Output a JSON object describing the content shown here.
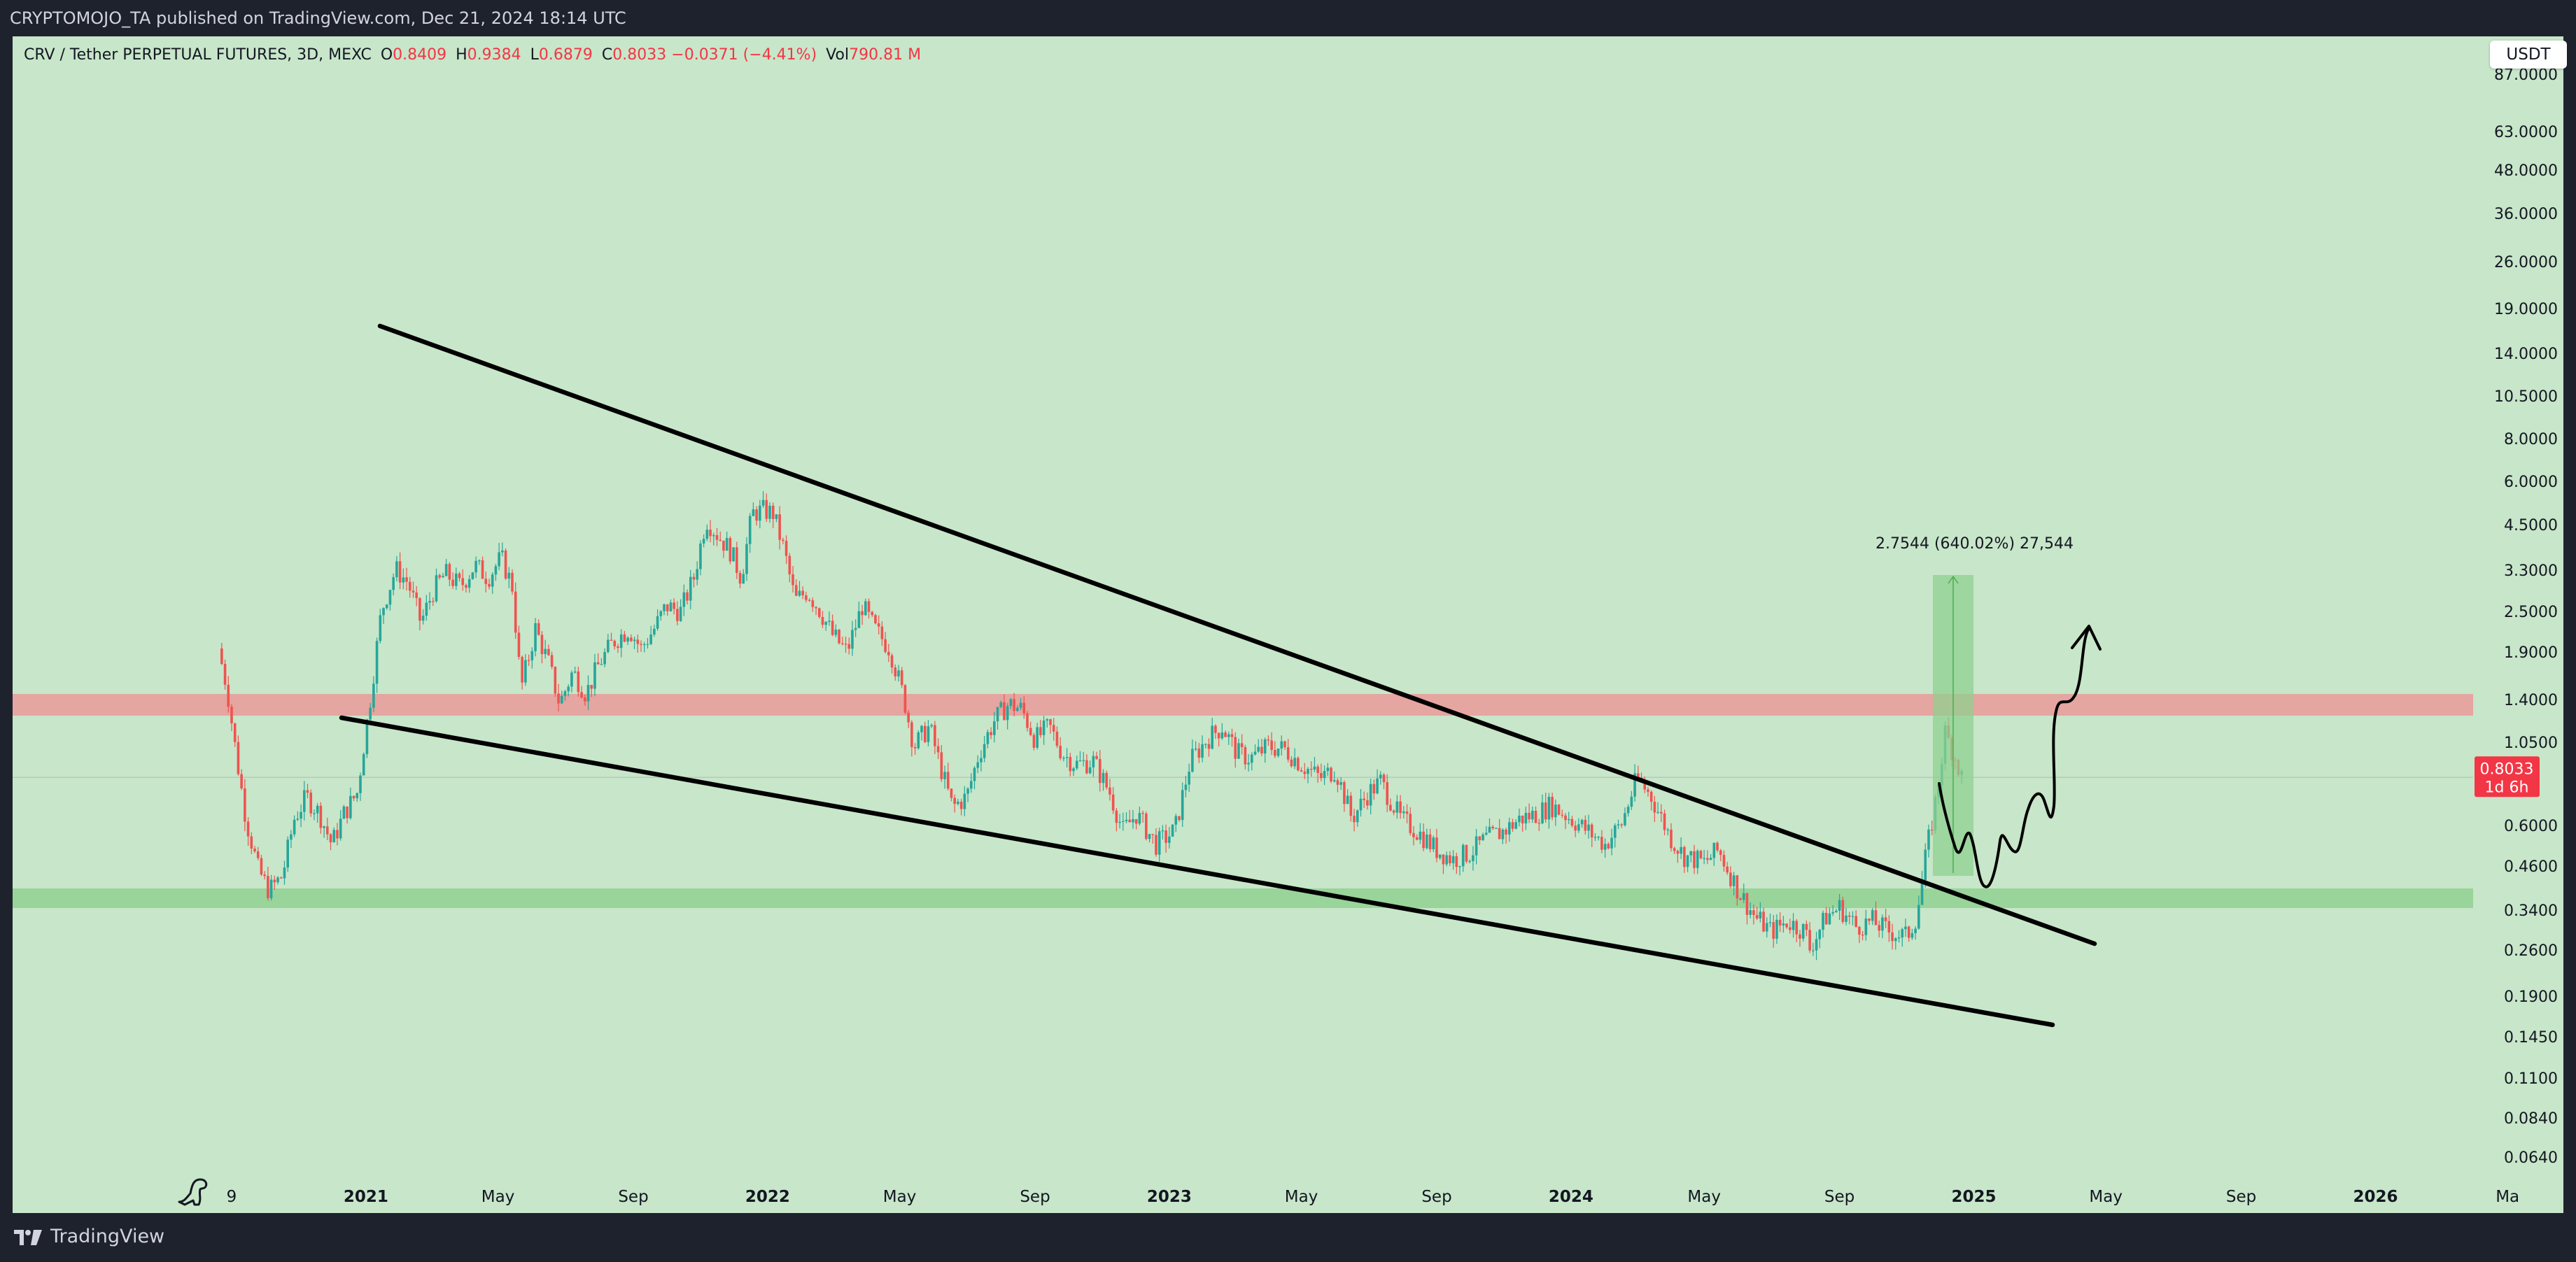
{
  "header": {
    "publish_text": "CRYPTOMOJO_TA published on TradingView.com, Dec 21, 2024 18:14 UTC"
  },
  "legend": {
    "symbol": "CRV / Tether PERPETUAL FUTURES, 3D, MEXC",
    "o_label": "O",
    "o_value": "0.8409",
    "h_label": "H",
    "h_value": "0.9384",
    "l_label": "L",
    "l_value": "0.6879",
    "c_label": "C",
    "c_value": "0.8033",
    "change": "−0.0371 (−4.41%)",
    "vol_label": "Vol",
    "vol_value": "790.81 M"
  },
  "currency_button": "USDT",
  "price_badge": {
    "price": "0.8033",
    "countdown": "1d 6h"
  },
  "measure_label": "2.7544 (640.02%) 27,544",
  "footer": {
    "brand": "TradingView"
  },
  "colors": {
    "background": "#c8e6c9",
    "resistance_zone": "#e5a5a0",
    "support_zone": "#99d49a",
    "up_candle": "#26a69a",
    "down_candle": "#ef5350",
    "trendline": "#000000",
    "measure_box": "#8fd08f",
    "price_badge": "#f23645"
  },
  "icons": [
    "dino-icon",
    "tradingview-logo-icon"
  ],
  "chart_data": {
    "type": "candlestick",
    "title": "",
    "xlabel": "",
    "ylabel": "",
    "y_scale": "log",
    "ylim": [
      0.05,
      100
    ],
    "grid": false,
    "y_ticks": [
      "87.0000",
      "63.0000",
      "48.0000",
      "36.0000",
      "26.0000",
      "19.0000",
      "14.0000",
      "10.5000",
      "8.0000",
      "6.0000",
      "4.5000",
      "3.3000",
      "2.5000",
      "1.9000",
      "1.4000",
      "1.0500",
      "0.6000",
      "0.4600",
      "0.3400",
      "0.2600",
      "0.1900",
      "0.1450",
      "0.1100",
      "0.0840",
      "0.0640"
    ],
    "x_ticks": [
      "9",
      "2021",
      "May",
      "Sep",
      "2022",
      "May",
      "Sep",
      "2023",
      "May",
      "Sep",
      "2024",
      "May",
      "Sep",
      "2025",
      "May",
      "Sep",
      "2026",
      "Ma"
    ],
    "x_tick_dates": [
      "2020-09",
      "2021-01",
      "2021-05",
      "2021-09",
      "2022-01",
      "2022-05",
      "2022-09",
      "2023-01",
      "2023-05",
      "2023-09",
      "2024-01",
      "2024-05",
      "2024-09",
      "2025-01",
      "2025-05",
      "2025-09",
      "2026-01",
      "2026-05"
    ],
    "last_price": 0.8033,
    "series": [
      {
        "points": [
          [
            "2020-08-20",
            2.0
          ],
          [
            "2020-08-28",
            1.5
          ],
          [
            "2020-09-05",
            0.95
          ],
          [
            "2020-09-14",
            0.6
          ],
          [
            "2020-09-25",
            0.42
          ],
          [
            "2020-10-05",
            0.36
          ],
          [
            "2020-10-17",
            0.4
          ],
          [
            "2020-10-28",
            0.6
          ],
          [
            "2020-11-08",
            0.7
          ],
          [
            "2020-11-20",
            0.62
          ],
          [
            "2020-12-01",
            0.5
          ],
          [
            "2020-12-12",
            0.62
          ],
          [
            "2020-12-24",
            0.72
          ],
          [
            "2021-01-05",
            1.4
          ],
          [
            "2021-01-15",
            2.6
          ],
          [
            "2021-01-28",
            3.5
          ],
          [
            "2021-02-08",
            3.2
          ],
          [
            "2021-02-20",
            2.4
          ],
          [
            "2021-03-03",
            3.0
          ],
          [
            "2021-03-14",
            3.4
          ],
          [
            "2021-03-28",
            3.1
          ],
          [
            "2021-04-10",
            3.6
          ],
          [
            "2021-04-22",
            3.3
          ],
          [
            "2021-05-04",
            3.8
          ],
          [
            "2021-05-14",
            3.1
          ],
          [
            "2021-05-22",
            1.5
          ],
          [
            "2021-06-04",
            2.3
          ],
          [
            "2021-06-16",
            1.8
          ],
          [
            "2021-06-26",
            1.35
          ],
          [
            "2021-07-08",
            1.7
          ],
          [
            "2021-07-20",
            1.45
          ],
          [
            "2021-08-01",
            1.8
          ],
          [
            "2021-08-14",
            2.1
          ],
          [
            "2021-08-28",
            2.3
          ],
          [
            "2021-09-08",
            2.0
          ],
          [
            "2021-09-20",
            2.3
          ],
          [
            "2021-10-01",
            2.7
          ],
          [
            "2021-10-14",
            2.6
          ],
          [
            "2021-10-26",
            3.3
          ],
          [
            "2021-11-06",
            5.0
          ],
          [
            "2021-11-18",
            4.4
          ],
          [
            "2021-11-28",
            4.0
          ],
          [
            "2021-12-08",
            3.3
          ],
          [
            "2021-12-18",
            5.2
          ],
          [
            "2021-12-28",
            5.3
          ],
          [
            "2022-01-06",
            5.2
          ],
          [
            "2022-01-16",
            4.0
          ],
          [
            "2022-01-26",
            2.8
          ],
          [
            "2022-02-06",
            3.0
          ],
          [
            "2022-02-18",
            2.6
          ],
          [
            "2022-03-01",
            2.2
          ],
          [
            "2022-03-14",
            1.95
          ],
          [
            "2022-03-28",
            2.7
          ],
          [
            "2022-04-08",
            2.3
          ],
          [
            "2022-04-22",
            2.0
          ],
          [
            "2022-05-05",
            1.4
          ],
          [
            "2022-05-14",
            1.0
          ],
          [
            "2022-05-28",
            1.15
          ],
          [
            "2022-06-10",
            0.8
          ],
          [
            "2022-06-18",
            0.65
          ],
          [
            "2022-07-01",
            0.7
          ],
          [
            "2022-07-12",
            0.95
          ],
          [
            "2022-07-26",
            1.2
          ],
          [
            "2022-08-08",
            1.35
          ],
          [
            "2022-08-20",
            1.3
          ],
          [
            "2022-09-01",
            1.05
          ],
          [
            "2022-09-14",
            1.15
          ],
          [
            "2022-09-26",
            0.95
          ],
          [
            "2022-10-08",
            0.88
          ],
          [
            "2022-10-24",
            0.9
          ],
          [
            "2022-11-08",
            0.72
          ],
          [
            "2022-11-20",
            0.55
          ],
          [
            "2022-12-02",
            0.62
          ],
          [
            "2022-12-20",
            0.5
          ],
          [
            "2023-01-06",
            0.55
          ],
          [
            "2023-01-20",
            0.9
          ],
          [
            "2023-02-04",
            1.05
          ],
          [
            "2023-02-18",
            1.15
          ],
          [
            "2023-03-04",
            0.95
          ],
          [
            "2023-03-16",
            0.92
          ],
          [
            "2023-04-01",
            1.0
          ],
          [
            "2023-04-16",
            0.98
          ],
          [
            "2023-05-01",
            0.88
          ],
          [
            "2023-05-18",
            0.8
          ],
          [
            "2023-06-01",
            0.85
          ],
          [
            "2023-06-16",
            0.6
          ],
          [
            "2023-07-01",
            0.72
          ],
          [
            "2023-07-12",
            0.78
          ],
          [
            "2023-07-30",
            0.6
          ],
          [
            "2023-08-14",
            0.55
          ],
          [
            "2023-09-01",
            0.48
          ],
          [
            "2023-09-16",
            0.45
          ],
          [
            "2023-10-01",
            0.47
          ],
          [
            "2023-10-16",
            0.52
          ],
          [
            "2023-11-01",
            0.55
          ],
          [
            "2023-11-16",
            0.6
          ],
          [
            "2023-12-01",
            0.62
          ],
          [
            "2023-12-14",
            0.66
          ],
          [
            "2024-01-01",
            0.6
          ],
          [
            "2024-01-16",
            0.55
          ],
          [
            "2024-02-01",
            0.5
          ],
          [
            "2024-02-16",
            0.58
          ],
          [
            "2024-03-01",
            0.8
          ],
          [
            "2024-03-14",
            0.7
          ],
          [
            "2024-04-01",
            0.52
          ],
          [
            "2024-04-13",
            0.46
          ],
          [
            "2024-05-01",
            0.44
          ],
          [
            "2024-05-14",
            0.48
          ],
          [
            "2024-06-01",
            0.36
          ],
          [
            "2024-06-16",
            0.3
          ],
          [
            "2024-07-01",
            0.27
          ],
          [
            "2024-07-16",
            0.29
          ],
          [
            "2024-08-01",
            0.27
          ],
          [
            "2024-08-05",
            0.24
          ],
          [
            "2024-08-20",
            0.3
          ],
          [
            "2024-09-01",
            0.32
          ],
          [
            "2024-09-16",
            0.28
          ],
          [
            "2024-10-01",
            0.29
          ],
          [
            "2024-10-16",
            0.27
          ],
          [
            "2024-11-01",
            0.26
          ],
          [
            "2024-11-10",
            0.3
          ],
          [
            "2024-11-18",
            0.45
          ],
          [
            "2024-11-28",
            0.7
          ],
          [
            "2024-12-06",
            1.1
          ],
          [
            "2024-12-14",
            0.95
          ],
          [
            "2024-12-21",
            0.8033
          ]
        ]
      }
    ]
  }
}
